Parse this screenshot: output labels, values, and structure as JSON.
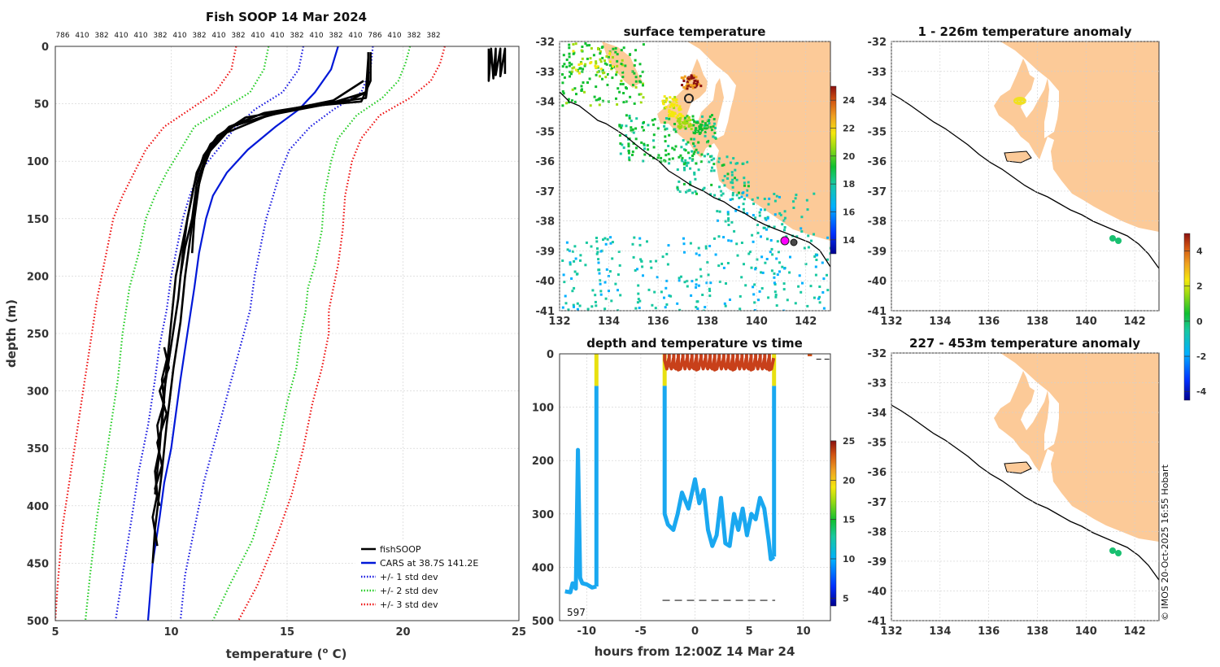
{
  "colors": {
    "fish": "#000000",
    "cars": "#0018d8",
    "std1": "#1515e0",
    "std2": "#22cc22",
    "std3": "#ee1010",
    "land": "#fcca98",
    "coast": "#000000",
    "magenta": "#ff00ff"
  },
  "credit": "© IMOS 20-Oct-2025 16:55 Hobart",
  "chart_data": [
    {
      "id": "profile",
      "type": "line",
      "title": "Fish SOOP 14 Mar 2024",
      "xlabel": "temperature (°C)",
      "xlabel_main": "temperature (",
      "xlabel_sup": "o",
      "xlabel_tail": " C)",
      "ylabel": "depth (m)",
      "xlim": [
        5,
        25
      ],
      "ylim": [
        500,
        0
      ],
      "xticks": [
        "5",
        "10",
        "15",
        "20",
        "25"
      ],
      "yticks": [
        "0",
        "50",
        "100",
        "150",
        "200",
        "250",
        "300",
        "350",
        "400",
        "450",
        "500"
      ],
      "top_labels": [
        "786",
        "410",
        "382",
        "410",
        "410",
        "382",
        "410",
        "382",
        "410",
        "382",
        "410",
        "410",
        "382",
        "410",
        "382",
        "410",
        "786",
        "410",
        "382",
        "382"
      ],
      "legend": [
        "fishSOOP",
        "CARS at 38.7S 141.2E",
        "+/- 1 std dev",
        "+/- 2 std dev",
        "+/- 3 std dev"
      ],
      "series": [
        {
          "name": "CARS at 38.7S 141.2E",
          "style": "solid",
          "color": "#0018d8",
          "x": [
            17.2,
            16.9,
            16.2,
            15.5,
            14.5,
            13.3,
            12.4,
            11.8,
            11.5,
            11.2,
            11.0,
            10.7,
            10.4,
            10.2,
            10.0,
            9.7,
            9.5,
            9.2,
            9.0
          ],
          "y": [
            0,
            20,
            40,
            55,
            70,
            90,
            110,
            130,
            150,
            180,
            210,
            250,
            290,
            320,
            350,
            380,
            410,
            450,
            500
          ]
        },
        {
          "name": "+1 std",
          "style": "dotted",
          "color": "#1515e0",
          "x": [
            18.7,
            18.6,
            18.2,
            17.0,
            16.0,
            15.1,
            14.7,
            14.4,
            14.1,
            13.9,
            13.6,
            13.4,
            13.0,
            12.6,
            12.2,
            11.8,
            11.4,
            11.0,
            10.6,
            10.4
          ],
          "y": [
            0,
            20,
            40,
            55,
            70,
            90,
            110,
            130,
            150,
            170,
            200,
            230,
            260,
            290,
            320,
            350,
            380,
            420,
            460,
            500
          ]
        },
        {
          "name": "-1 std",
          "style": "dotted",
          "color": "#1515e0",
          "x": [
            15.7,
            15.5,
            14.8,
            13.6,
            12.8,
            12.0,
            11.2,
            10.8,
            10.5,
            10.2,
            10.0,
            9.8,
            9.5,
            9.3,
            9.0,
            8.6,
            8.3,
            7.9,
            7.6
          ],
          "y": [
            0,
            20,
            40,
            55,
            70,
            90,
            110,
            130,
            150,
            180,
            200,
            230,
            260,
            290,
            330,
            370,
            410,
            460,
            500
          ]
        },
        {
          "name": "+2 std",
          "style": "dotted",
          "color": "#22cc22",
          "x": [
            20.3,
            20.1,
            19.8,
            19.1,
            18.0,
            17.2,
            16.9,
            16.6,
            16.5,
            16.2,
            15.9,
            15.8,
            15.6,
            15.4,
            15.0,
            14.6,
            14.1,
            13.5,
            12.5,
            11.8
          ],
          "y": [
            0,
            15,
            30,
            45,
            60,
            80,
            100,
            130,
            160,
            190,
            210,
            230,
            250,
            280,
            310,
            350,
            390,
            430,
            470,
            500
          ]
        },
        {
          "name": "-2 std",
          "style": "dotted",
          "color": "#22cc22",
          "x": [
            14.2,
            14.0,
            13.4,
            12.2,
            11.0,
            10.4,
            9.8,
            9.3,
            8.9,
            8.6,
            8.2,
            7.9,
            7.7,
            7.4,
            7.1,
            6.8,
            6.5,
            6.3
          ],
          "y": [
            0,
            20,
            40,
            55,
            70,
            90,
            110,
            130,
            150,
            180,
            210,
            250,
            290,
            330,
            370,
            410,
            460,
            500
          ]
        },
        {
          "name": "+3 std",
          "style": "dotted",
          "color": "#ee1010",
          "x": [
            21.8,
            21.6,
            21.2,
            20.3,
            19.0,
            18.2,
            17.8,
            17.5,
            17.4,
            17.2,
            17.0,
            16.8,
            16.8,
            16.5,
            16.1,
            15.7,
            15.2,
            14.5,
            13.7,
            12.9
          ],
          "y": [
            0,
            15,
            30,
            45,
            60,
            80,
            100,
            130,
            160,
            190,
            210,
            230,
            250,
            280,
            310,
            350,
            390,
            430,
            470,
            500
          ]
        },
        {
          "name": "-3 std",
          "style": "dotted",
          "color": "#ee1010",
          "x": [
            12.8,
            12.6,
            11.9,
            10.8,
            9.7,
            8.9,
            8.4,
            7.9,
            7.5,
            7.2,
            6.8,
            6.5,
            6.2,
            5.9,
            5.6,
            5.3,
            5.1,
            5.0
          ],
          "y": [
            0,
            20,
            40,
            55,
            70,
            90,
            110,
            130,
            150,
            180,
            220,
            260,
            300,
            340,
            380,
            420,
            470,
            500
          ]
        },
        {
          "name": "fishSOOP 1",
          "style": "thick",
          "color": "#000000",
          "x": [
            18.5,
            18.5,
            18.4,
            16.5,
            14.0,
            12.5,
            11.8,
            11.3,
            11.0,
            10.8,
            10.6,
            10.4,
            10.1,
            9.8,
            9.6,
            9.3,
            9.2
          ],
          "y": [
            5,
            30,
            45,
            50,
            58,
            70,
            85,
            110,
            140,
            170,
            200,
            240,
            280,
            330,
            370,
            420,
            450
          ]
        },
        {
          "name": "fishSOOP 2",
          "style": "thick",
          "color": "#000000",
          "x": [
            18.6,
            18.6,
            18.2,
            16.0,
            13.2,
            12.0,
            11.4,
            11.0,
            10.7,
            10.5,
            10.3,
            10.0,
            9.7,
            9.5,
            9.3
          ],
          "y": [
            5,
            30,
            48,
            52,
            62,
            78,
            95,
            120,
            150,
            180,
            220,
            260,
            300,
            350,
            390
          ]
        },
        {
          "name": "fishSOOP 3",
          "style": "thick",
          "color": "#000000",
          "x": [
            18.5,
            18.4,
            17.6,
            15.2,
            12.8,
            11.7,
            11.1,
            10.8,
            10.5,
            10.2,
            10.0,
            9.8,
            9.6
          ],
          "y": [
            10,
            40,
            48,
            55,
            68,
            85,
            110,
            140,
            170,
            200,
            240,
            280,
            330
          ]
        },
        {
          "name": "fishSOOP 4",
          "style": "thick",
          "color": "#000000",
          "x": [
            18.3,
            17.0,
            14.8,
            12.6,
            11.6,
            11.2,
            11.0,
            10.9
          ],
          "y": [
            30,
            47,
            56,
            70,
            90,
            120,
            150,
            180
          ]
        },
        {
          "name": "fishSOOP 5",
          "style": "thick",
          "color": "#000000",
          "x": [
            18.4,
            16.8,
            14.2,
            12.4,
            11.5,
            11.1,
            10.9,
            10.6,
            10.4
          ],
          "y": [
            40,
            50,
            60,
            75,
            95,
            120,
            150,
            175,
            200
          ]
        },
        {
          "name": "fishSOOP 6",
          "style": "thick",
          "color": "#000000",
          "x": [
            9.9,
            9.6,
            9.7,
            9.4,
            9.5,
            9.3,
            9.4,
            9.2,
            9.4
          ],
          "y": [
            265,
            290,
            310,
            330,
            350,
            370,
            390,
            410,
            435
          ]
        },
        {
          "name": "fishSOOP 7",
          "style": "thick",
          "color": "#000000",
          "x": [
            9.7,
            9.9,
            9.5,
            9.8,
            9.4,
            9.6,
            9.3,
            9.5
          ],
          "y": [
            262,
            280,
            300,
            320,
            345,
            365,
            385,
            400
          ]
        },
        {
          "name": "fishSOOP surface",
          "style": "thick",
          "color": "#000000",
          "x": [
            23.7,
            23.7,
            23.8,
            23.9,
            24.0,
            24.0,
            24.2,
            24.2,
            24.4,
            24.4
          ],
          "y": [
            2,
            30,
            2,
            28,
            2,
            25,
            2,
            26,
            2,
            24
          ]
        }
      ]
    },
    {
      "id": "surface_temp",
      "type": "heatmap",
      "title": "surface temperature",
      "xticks": [
        "132",
        "134",
        "136",
        "138",
        "140",
        "142"
      ],
      "yticks": [
        "-32",
        "-33",
        "-34",
        "-35",
        "-36",
        "-37",
        "-38",
        "-39",
        "-40",
        "-41"
      ],
      "xlim": [
        132,
        143
      ],
      "ylim": [
        -41,
        -32
      ],
      "colorbar": {
        "ticks": [
          "14",
          "16",
          "18",
          "20",
          "22",
          "24"
        ],
        "range": [
          13,
          25
        ]
      }
    },
    {
      "id": "depth_time",
      "type": "scatter",
      "title": "depth and temperature vs time",
      "xlabel": "hours from 12:00Z 14 Mar 24",
      "xlim": [
        -12.5,
        12.5
      ],
      "ylim": [
        500,
        0
      ],
      "xticks": [
        "-10",
        "-5",
        "0",
        "5",
        "10"
      ],
      "yticks": [
        "0",
        "100",
        "200",
        "300",
        "400",
        "500"
      ],
      "annotation": "597",
      "colorbar": {
        "ticks": [
          "5",
          "10",
          "15",
          "20",
          "25"
        ],
        "range": [
          4,
          25
        ]
      }
    },
    {
      "id": "anom_1_226",
      "type": "heatmap",
      "title": "1 - 226m temperature anomaly",
      "xticks": [
        "132",
        "134",
        "136",
        "138",
        "140",
        "142"
      ],
      "yticks": [
        "-32",
        "-33",
        "-34",
        "-35",
        "-36",
        "-37",
        "-38",
        "-39",
        "-40",
        "-41"
      ],
      "xlim": [
        132,
        143
      ],
      "ylim": [
        -41,
        -32
      ],
      "colorbar": {
        "ticks": [
          "4",
          "2",
          "0",
          "-2",
          "-4"
        ],
        "range": [
          -4.5,
          5
        ]
      }
    },
    {
      "id": "anom_227_453",
      "type": "heatmap",
      "title": "227 - 453m temperature anomaly",
      "xticks": [
        "132",
        "134",
        "136",
        "138",
        "140",
        "142"
      ],
      "yticks": [
        "-32",
        "-33",
        "-34",
        "-35",
        "-36",
        "-37",
        "-38",
        "-39",
        "-40",
        "-41"
      ],
      "xlim": [
        132,
        143
      ],
      "ylim": [
        -41,
        -32
      ]
    }
  ]
}
